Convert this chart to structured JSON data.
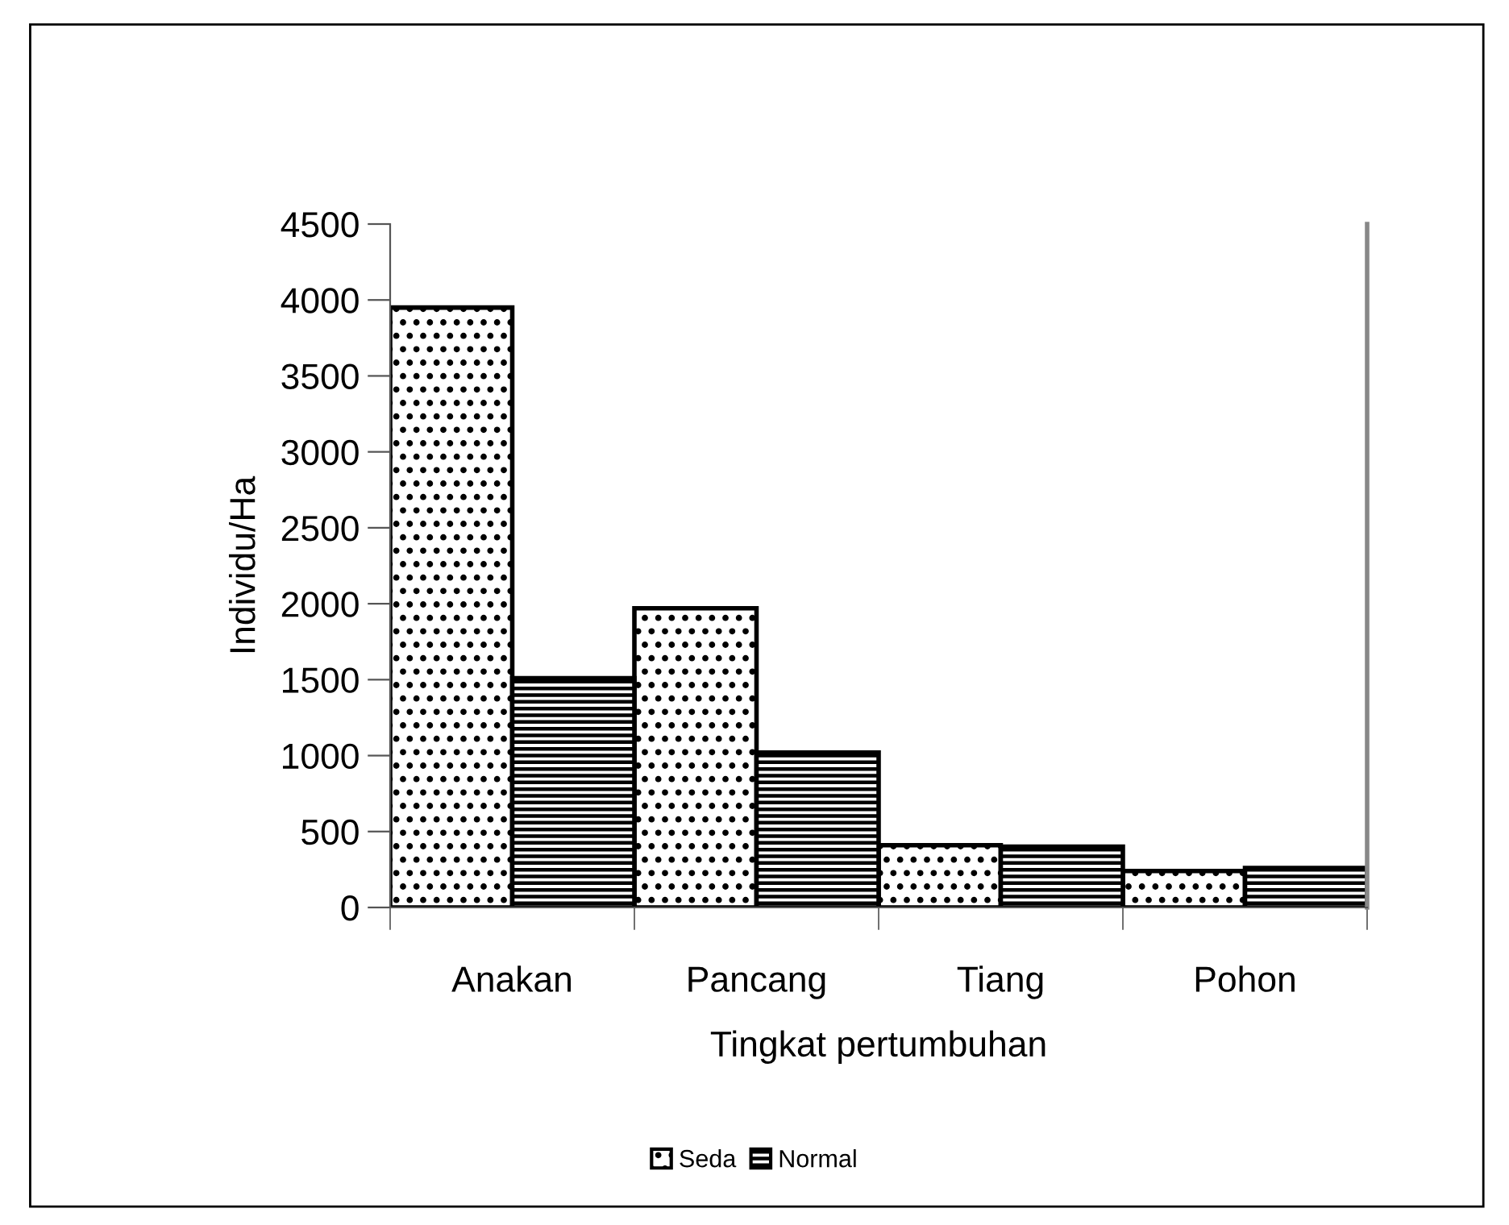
{
  "chart_data": {
    "type": "bar",
    "xlabel": "Tingkat pertumbuhan",
    "ylabel": "Individu/Ha",
    "categories": [
      "Anakan",
      "Pancang",
      "Tiang",
      "Pohon"
    ],
    "series": [
      {
        "name": "Seda",
        "color": "#000000",
        "values": [
          3950,
          1970,
          410,
          240
        ]
      },
      {
        "name": "Normal",
        "color": "#000000",
        "values": [
          1510,
          1020,
          400,
          260
        ]
      }
    ],
    "ylim": [
      0,
      4500
    ],
    "yticks": [
      0,
      500,
      1000,
      1500,
      2000,
      2500,
      3000,
      3500,
      4000,
      4500
    ],
    "grid": false,
    "legend": "bottom"
  }
}
